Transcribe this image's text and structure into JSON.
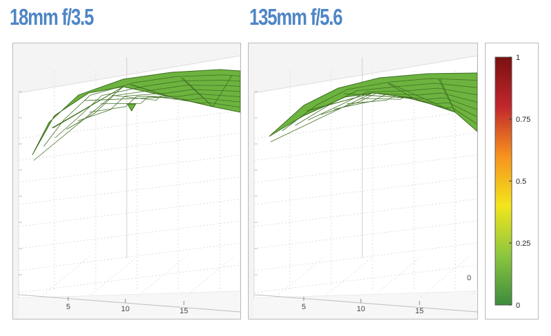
{
  "titles": [
    "18mm f/3.5",
    "135mm f/5.6"
  ],
  "chart_data": [
    {
      "type": "surface",
      "title": "18mm f/3.5",
      "x_ticks": [
        "5",
        "10",
        "15"
      ],
      "surface_color": "#6db33f",
      "grid": true
    },
    {
      "type": "surface",
      "title": "135mm f/5.6",
      "x_ticks": [
        "5",
        "10",
        "15"
      ],
      "z_tick_visible": "0",
      "surface_color": "#6db33f",
      "grid": true
    },
    {
      "type": "colorbar",
      "ticks": [
        1,
        0.75,
        0.5,
        0.25,
        0
      ],
      "tick_labels": [
        "1",
        "0.75",
        "0.5",
        "0.25",
        "0"
      ],
      "colors": [
        "#3d8b3d",
        "#8cc63f",
        "#f2e51c",
        "#f7931e",
        "#c1272d",
        "#7a1010"
      ]
    }
  ]
}
